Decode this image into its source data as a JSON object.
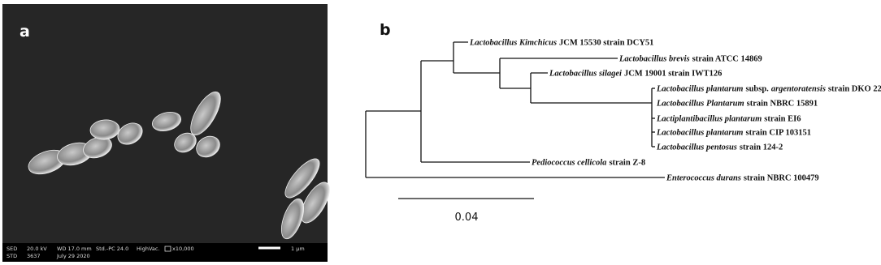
{
  "panel_a": {
    "label": "a",
    "info_bar": {
      "row1": [
        "SED",
        "20.0 kV",
        "WD 17.0 mm",
        "Std.-PC 24.0",
        "HighVac.",
        "x10,000",
        "1 μm"
      ],
      "row2": [
        "STD",
        "3637",
        "July 29 2020"
      ]
    }
  },
  "panel_b": {
    "label": "b",
    "leaves": [
      {
        "parts": [
          {
            "text": "Lactobacillus Kimchicus",
            "style": "italic"
          },
          {
            "text": "JCM 15530 strain DCY51",
            "style": "normal"
          }
        ]
      },
      {
        "parts": [
          {
            "text": "Lactobacillus brevis",
            "style": "italic"
          },
          {
            "text": "strain ATCC 14869",
            "style": "normal"
          }
        ]
      },
      {
        "parts": [
          {
            "text": "Lactobacillus silagei",
            "style": "italic"
          },
          {
            "text": "JCM 19001 strain IWT126",
            "style": "normal"
          }
        ]
      },
      {
        "parts": [
          {
            "text": "Lactobacillus plantarum",
            "style": "italic"
          },
          {
            "text": "subsp.",
            "style": "normal"
          },
          {
            "text": "argentoratensis",
            "style": "italic"
          },
          {
            "text": "strain DKO 22",
            "style": "normal"
          }
        ]
      },
      {
        "parts": [
          {
            "text": "Lactobacillus Plantarum",
            "style": "italic"
          },
          {
            "text": "strain NBRC 15891",
            "style": "normal"
          }
        ]
      },
      {
        "parts": [
          {
            "text": "Lactiplantibacillus plantarum",
            "style": "italic"
          },
          {
            "text": "strain EI6",
            "style": "normal"
          }
        ]
      },
      {
        "parts": [
          {
            "text": "Lactobacillus plantarum",
            "style": "italic"
          },
          {
            "text": "strain CIP 103151",
            "style": "normal"
          }
        ]
      },
      {
        "parts": [
          {
            "text": "Lactobacillus pentosus",
            "style": "italic"
          },
          {
            "text": "strain 124-2",
            "style": "normal"
          }
        ]
      },
      {
        "parts": [
          {
            "text": "Pediococcus cellicola",
            "style": "italic"
          },
          {
            "text": "strain Z-8",
            "style": "normal"
          }
        ]
      },
      {
        "parts": [
          {
            "text": "Enterococcus durans",
            "style": "italic"
          },
          {
            "text": "strain NBRC 100479",
            "style": "normal"
          }
        ]
      }
    ],
    "scale_label": "0.04"
  }
}
